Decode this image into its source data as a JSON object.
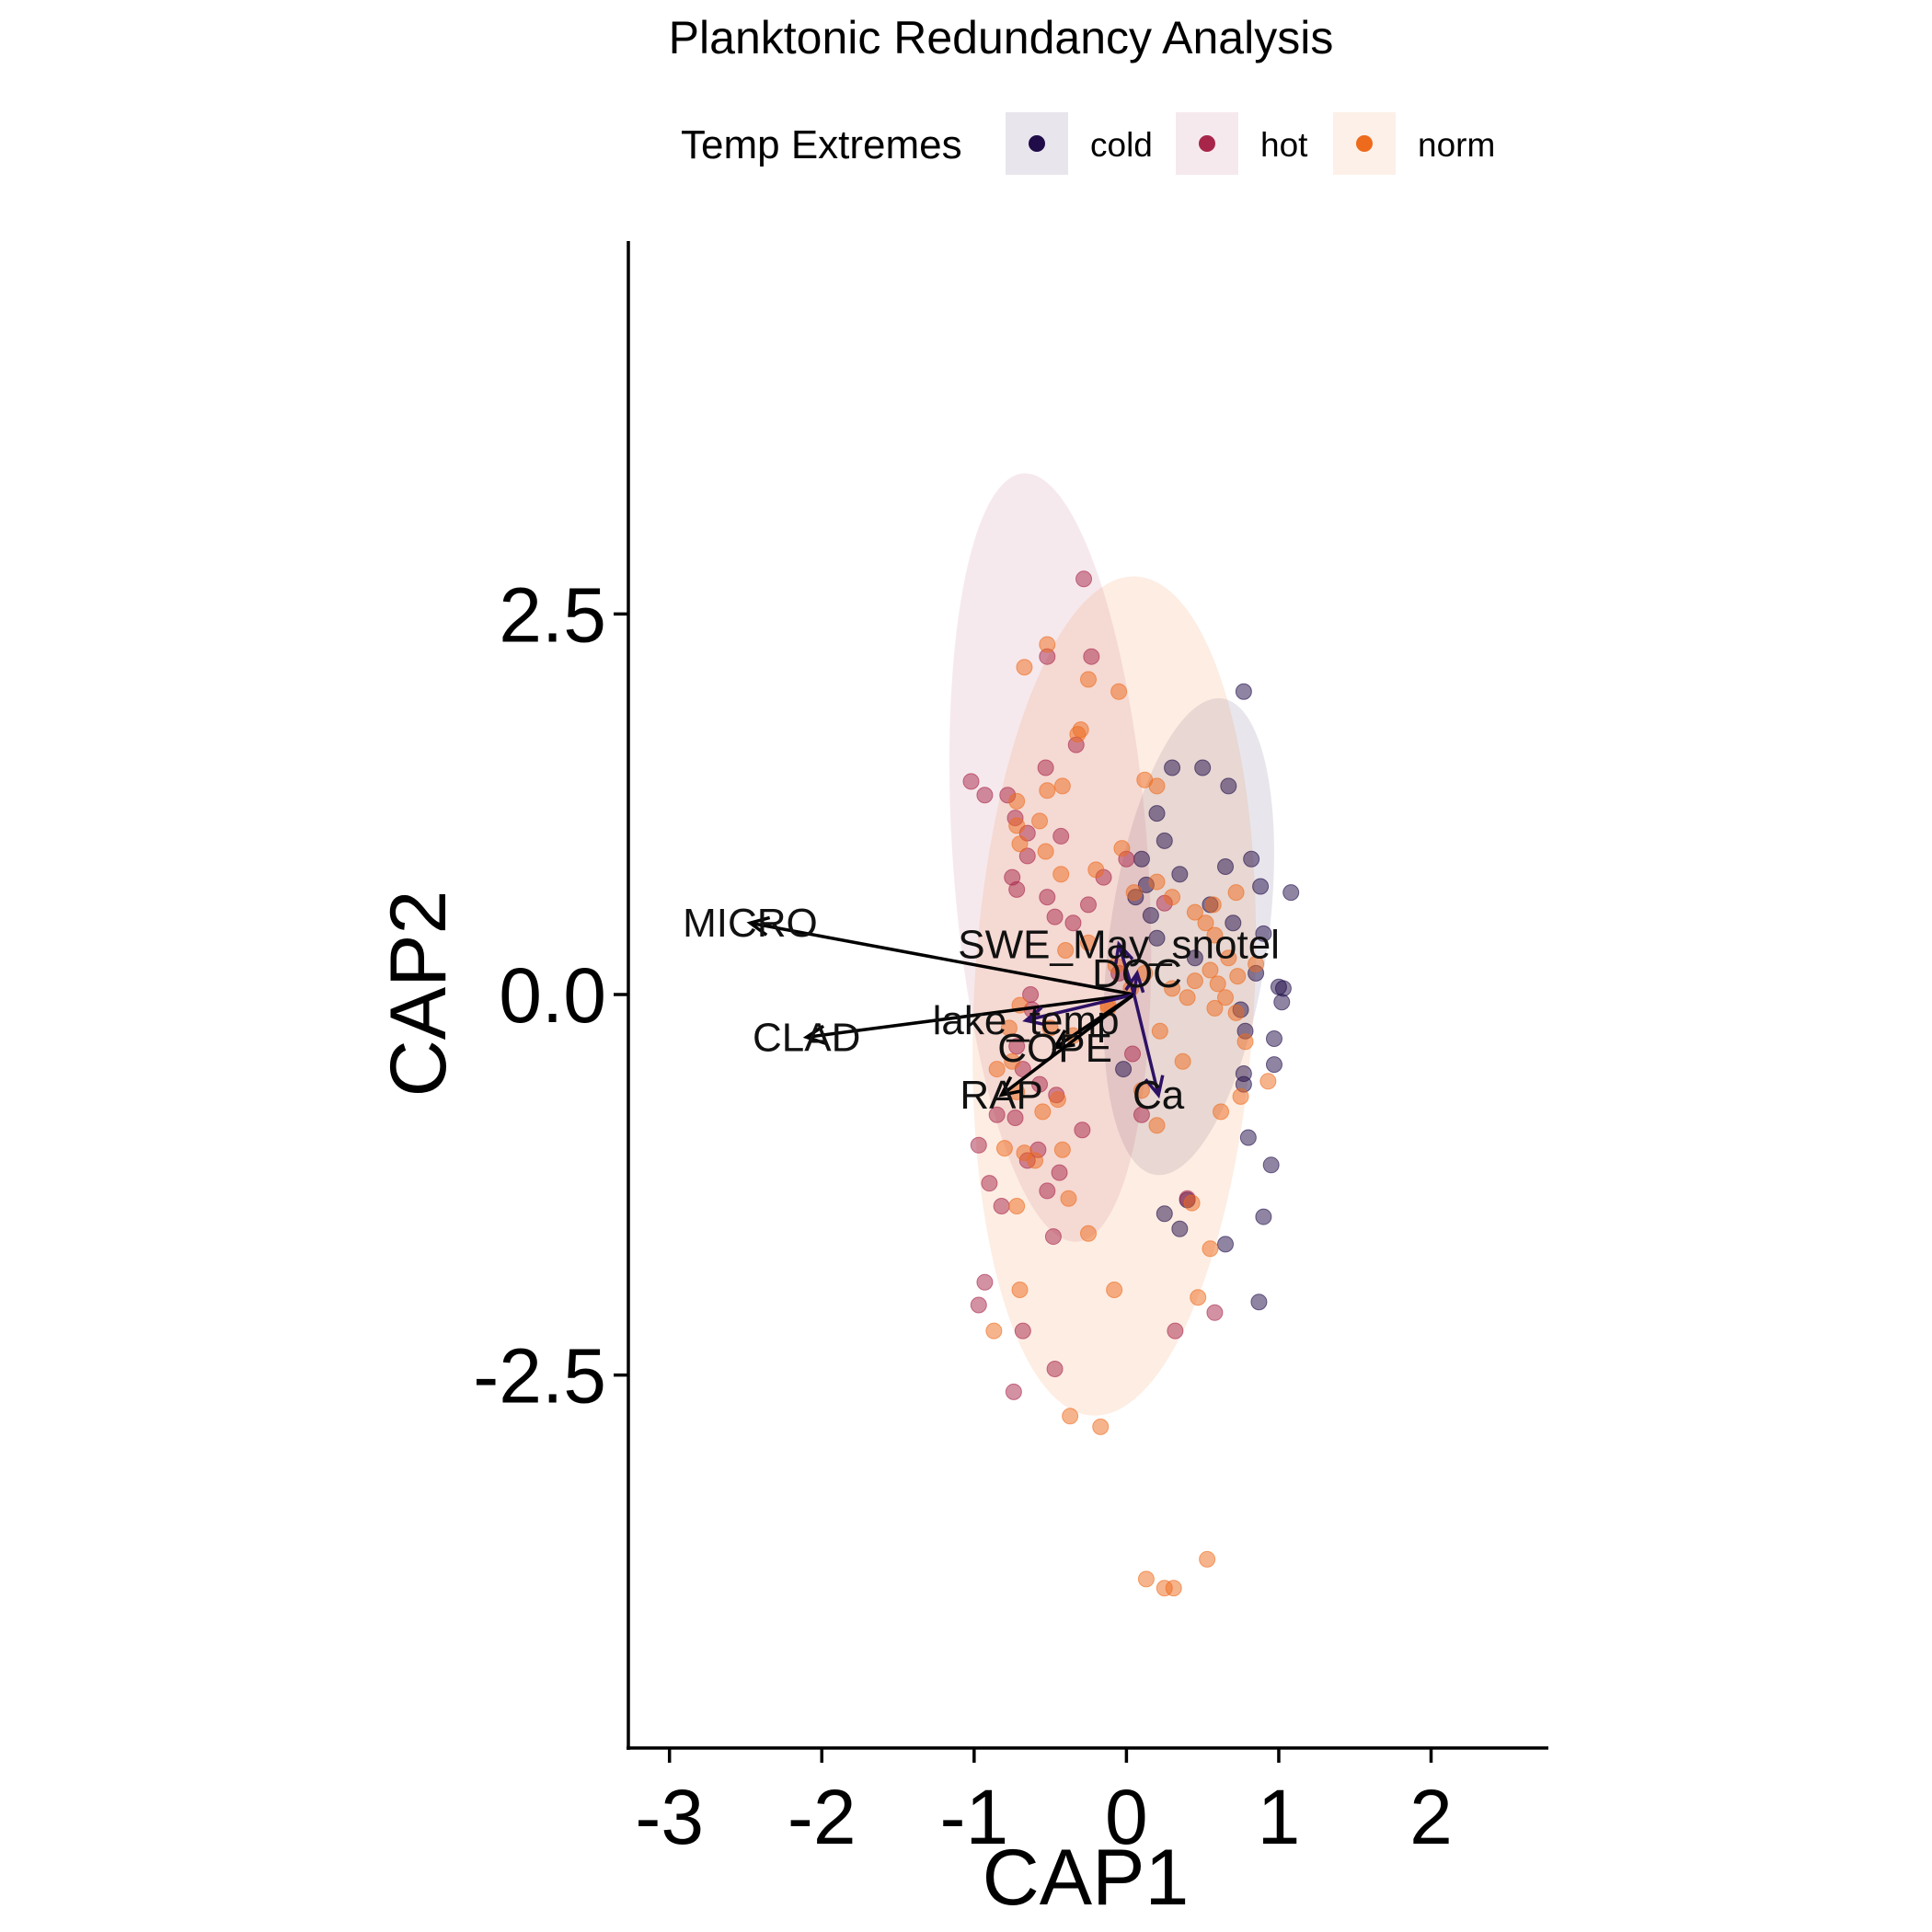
{
  "chart_data": {
    "type": "scatter",
    "title": "Planktonic Redundancy Analysis",
    "xlabel": "CAP1",
    "ylabel": "CAP2",
    "xlim": [
      -3.27,
      2.77
    ],
    "ylim": [
      -4.95,
      4.95
    ],
    "x_ticks": [
      -3,
      -2,
      -1,
      0,
      1,
      2
    ],
    "y_ticks": [
      -2.5,
      0,
      2.5
    ],
    "x_tick_labels": [
      "-3",
      "-2",
      "-1",
      "0",
      "1",
      "2"
    ],
    "y_tick_labels": [
      "-2.5",
      "0.0",
      "2.5"
    ],
    "grid": false,
    "legend": {
      "title": "Temp Extremes",
      "position": "top",
      "entries": [
        {
          "name": "cold",
          "color": "#1f0c48"
        },
        {
          "name": "hot",
          "color": "#a8254a"
        },
        {
          "name": "norm",
          "color": "#ee6a1c"
        }
      ]
    },
    "series": [
      {
        "name": "cold",
        "color": "#1f0c48",
        "points": [
          [
            0.77,
            1.99
          ],
          [
            0.3,
            1.49
          ],
          [
            0.5,
            1.49
          ],
          [
            0.67,
            1.37
          ],
          [
            0.2,
            1.19
          ],
          [
            0.25,
            1.01
          ],
          [
            0.1,
            0.89
          ],
          [
            0.35,
            0.79
          ],
          [
            0.65,
            0.84
          ],
          [
            0.82,
            0.89
          ],
          [
            0.88,
            0.71
          ],
          [
            1.08,
            0.67
          ],
          [
            0.55,
            0.59
          ],
          [
            0.7,
            0.47
          ],
          [
            0.9,
            0.4
          ],
          [
            0.85,
            0.14
          ],
          [
            1.0,
            0.05
          ],
          [
            1.02,
            -0.05
          ],
          [
            0.97,
            -0.29
          ],
          [
            0.75,
            -0.1
          ],
          [
            0.78,
            -0.24
          ],
          [
            0.97,
            -0.46
          ],
          [
            0.77,
            -0.59
          ],
          [
            0.13,
            0.72
          ],
          [
            0.06,
            0.64
          ],
          [
            0.16,
            0.52
          ],
          [
            0.2,
            0.37
          ],
          [
            0.45,
            0.24
          ],
          [
            -0.02,
            -0.49
          ],
          [
            0.95,
            -1.12
          ],
          [
            0.25,
            -1.44
          ],
          [
            0.4,
            -1.35
          ],
          [
            0.65,
            -1.64
          ],
          [
            0.9,
            -1.46
          ],
          [
            0.87,
            -2.02
          ],
          [
            0.35,
            -1.54
          ],
          [
            0.8,
            -0.94
          ],
          [
            1.03,
            0.04
          ],
          [
            0.77,
            -0.52
          ]
        ]
      },
      {
        "name": "hot",
        "color": "#a8254a",
        "points": [
          [
            -0.28,
            2.73
          ],
          [
            -0.52,
            2.22
          ],
          [
            -0.23,
            2.22
          ],
          [
            -1.02,
            1.4
          ],
          [
            -0.93,
            1.31
          ],
          [
            -0.53,
            1.49
          ],
          [
            -0.33,
            1.64
          ],
          [
            -0.78,
            1.31
          ],
          [
            -0.73,
            1.16
          ],
          [
            -0.65,
            1.06
          ],
          [
            -0.43,
            1.04
          ],
          [
            -0.65,
            0.91
          ],
          [
            -0.75,
            0.77
          ],
          [
            -0.72,
            0.69
          ],
          [
            -0.52,
            0.64
          ],
          [
            -0.25,
            0.59
          ],
          [
            -0.47,
            0.51
          ],
          [
            -0.35,
            0.47
          ],
          [
            -0.15,
            0.77
          ],
          [
            0.0,
            0.89
          ],
          [
            0.25,
            0.6
          ],
          [
            -0.62,
            -0.1
          ],
          [
            -0.72,
            -0.34
          ],
          [
            -0.68,
            -0.49
          ],
          [
            -0.57,
            -0.59
          ],
          [
            -0.85,
            -0.79
          ],
          [
            -0.73,
            -0.81
          ],
          [
            -0.97,
            -0.99
          ],
          [
            -0.9,
            -1.24
          ],
          [
            -0.65,
            -1.09
          ],
          [
            -0.58,
            -1.02
          ],
          [
            -0.44,
            -1.17
          ],
          [
            -0.52,
            -1.29
          ],
          [
            -0.29,
            -0.89
          ],
          [
            -0.82,
            -1.39
          ],
          [
            -0.48,
            -1.59
          ],
          [
            -0.93,
            -1.89
          ],
          [
            -0.97,
            -2.04
          ],
          [
            -0.68,
            -2.21
          ],
          [
            -0.74,
            -2.61
          ],
          [
            -0.47,
            -2.46
          ],
          [
            0.1,
            -0.79
          ],
          [
            0.32,
            -2.21
          ],
          [
            0.4,
            -1.34
          ],
          [
            0.58,
            -2.09
          ],
          [
            0.04,
            -0.39
          ],
          [
            -0.63,
            0.0
          ],
          [
            -0.05,
            0.14
          ],
          [
            -0.46,
            -0.66
          ]
        ]
      },
      {
        "name": "norm",
        "color": "#ee6a1c",
        "points": [
          [
            -0.67,
            2.15
          ],
          [
            -0.52,
            2.3
          ],
          [
            -0.25,
            2.07
          ],
          [
            -0.05,
            1.99
          ],
          [
            -0.3,
            1.74
          ],
          [
            -0.32,
            1.71
          ],
          [
            -0.42,
            1.37
          ],
          [
            -0.52,
            1.34
          ],
          [
            -0.72,
            1.27
          ],
          [
            -0.57,
            1.14
          ],
          [
            -0.72,
            1.11
          ],
          [
            -0.7,
            0.99
          ],
          [
            -0.53,
            0.94
          ],
          [
            -0.43,
            0.79
          ],
          [
            -0.2,
            0.82
          ],
          [
            -0.03,
            0.96
          ],
          [
            0.2,
            1.37
          ],
          [
            0.12,
            1.41
          ],
          [
            0.05,
            0.67
          ],
          [
            0.2,
            0.74
          ],
          [
            0.3,
            0.64
          ],
          [
            0.45,
            0.54
          ],
          [
            0.57,
            0.59
          ],
          [
            0.72,
            0.67
          ],
          [
            0.52,
            0.47
          ],
          [
            0.58,
            0.39
          ],
          [
            0.67,
            0.24
          ],
          [
            0.55,
            0.16
          ],
          [
            0.45,
            0.09
          ],
          [
            0.6,
            0.07
          ],
          [
            0.73,
            0.12
          ],
          [
            0.65,
            -0.02
          ],
          [
            0.58,
            -0.09
          ],
          [
            0.4,
            -0.02
          ],
          [
            0.3,
            0.04
          ],
          [
            0.22,
            -0.24
          ],
          [
            0.12,
            0.14
          ],
          [
            0.03,
            0.04
          ],
          [
            -0.07,
            0.19
          ],
          [
            -0.25,
            0.34
          ],
          [
            -0.4,
            0.29
          ],
          [
            -0.12,
            -0.09
          ],
          [
            -0.35,
            -0.27
          ],
          [
            -0.5,
            -0.22
          ],
          [
            -0.7,
            -0.07
          ],
          [
            -0.77,
            -0.22
          ],
          [
            -0.75,
            -0.44
          ],
          [
            -0.72,
            -0.64
          ],
          [
            -0.45,
            -0.69
          ],
          [
            -0.55,
            -0.77
          ],
          [
            -0.85,
            -0.49
          ],
          [
            -0.8,
            -1.01
          ],
          [
            -0.67,
            -1.04
          ],
          [
            -0.6,
            -1.09
          ],
          [
            -0.42,
            -1.02
          ],
          [
            -0.38,
            -1.34
          ],
          [
            -0.72,
            -1.39
          ],
          [
            -0.25,
            -1.57
          ],
          [
            -0.7,
            -1.94
          ],
          [
            -0.08,
            -1.94
          ],
          [
            -0.87,
            -2.21
          ],
          [
            -0.37,
            -2.77
          ],
          [
            -0.17,
            -2.84
          ],
          [
            0.13,
            -3.84
          ],
          [
            0.25,
            -3.9
          ],
          [
            0.31,
            -3.9
          ],
          [
            0.53,
            -3.71
          ],
          [
            0.47,
            -1.99
          ],
          [
            0.55,
            -1.67
          ],
          [
            0.62,
            -0.77
          ],
          [
            0.75,
            -0.67
          ],
          [
            0.78,
            -0.31
          ],
          [
            0.37,
            -0.44
          ],
          [
            0.1,
            -0.63
          ],
          [
            0.2,
            -0.86
          ],
          [
            0.43,
            -1.37
          ],
          [
            0.72,
            -0.12
          ],
          [
            0.85,
            0.2
          ],
          [
            0.93,
            -0.57
          ],
          [
            -0.12,
            -0.07
          ]
        ]
      }
    ],
    "ellipses": [
      {
        "name": "cold",
        "color": "#1f0c48",
        "cx": 0.41,
        "cy": 0.38,
        "sx": 0.52,
        "sy": 1.58,
        "angle_deg": 8,
        "opacity": 0.1
      },
      {
        "name": "hot",
        "color": "#a8254a",
        "cx": -0.5,
        "cy": 0.9,
        "sx": 0.64,
        "sy": 2.53,
        "angle_deg": -4,
        "opacity": 0.1
      },
      {
        "name": "norm",
        "color": "#ee6a1c",
        "cx": -0.08,
        "cy": -0.01,
        "sx": 0.92,
        "sy": 2.76,
        "angle_deg": 3,
        "opacity": 0.12
      }
    ],
    "vectors": [
      {
        "label": "MICRO",
        "x": -2.47,
        "y": 0.47,
        "color": "#000000"
      },
      {
        "label": "CLAD",
        "x": -2.1,
        "y": -0.28,
        "color": "#000000"
      },
      {
        "label": "SWE_May_snotel",
        "x": -0.05,
        "y": 0.33,
        "color": "#2d1165"
      },
      {
        "label": "DOC",
        "x": 0.07,
        "y": 0.14,
        "color": "#2d1165"
      },
      {
        "label": "lake_temp",
        "x": -0.66,
        "y": -0.17,
        "color": "#2d1165"
      },
      {
        "label": "COPE",
        "x": -0.47,
        "y": -0.35,
        "color": "#000000"
      },
      {
        "label": "RAP",
        "x": -0.82,
        "y": -0.66,
        "color": "#000000"
      },
      {
        "label": "Ca",
        "x": 0.21,
        "y": -0.66,
        "color": "#2d1165"
      }
    ]
  }
}
